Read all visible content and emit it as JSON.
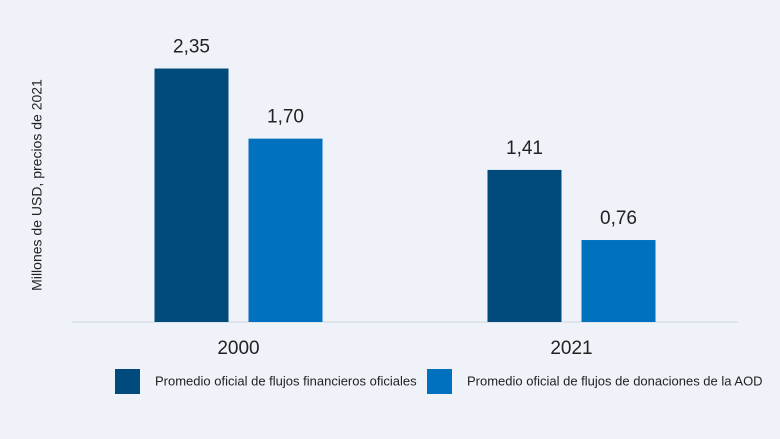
{
  "chart_data": {
    "type": "bar",
    "y_label": "Millones de USD, precios de 2021",
    "categories": [
      "2000",
      "2021"
    ],
    "series": [
      {
        "name": "Promedio oficial de flujos financieros oficiales",
        "color": "#004b7c",
        "values": [
          2.35,
          1.41
        ],
        "value_labels": [
          "2,35",
          "1,41"
        ]
      },
      {
        "name": "Promedio oficial de flujos de donaciones de la AOD",
        "color": "#0071bf",
        "values": [
          1.7,
          0.76
        ],
        "value_labels": [
          "1,70",
          "0,76"
        ]
      }
    ],
    "ylim": [
      0,
      2.8
    ],
    "legend": "bottom"
  }
}
